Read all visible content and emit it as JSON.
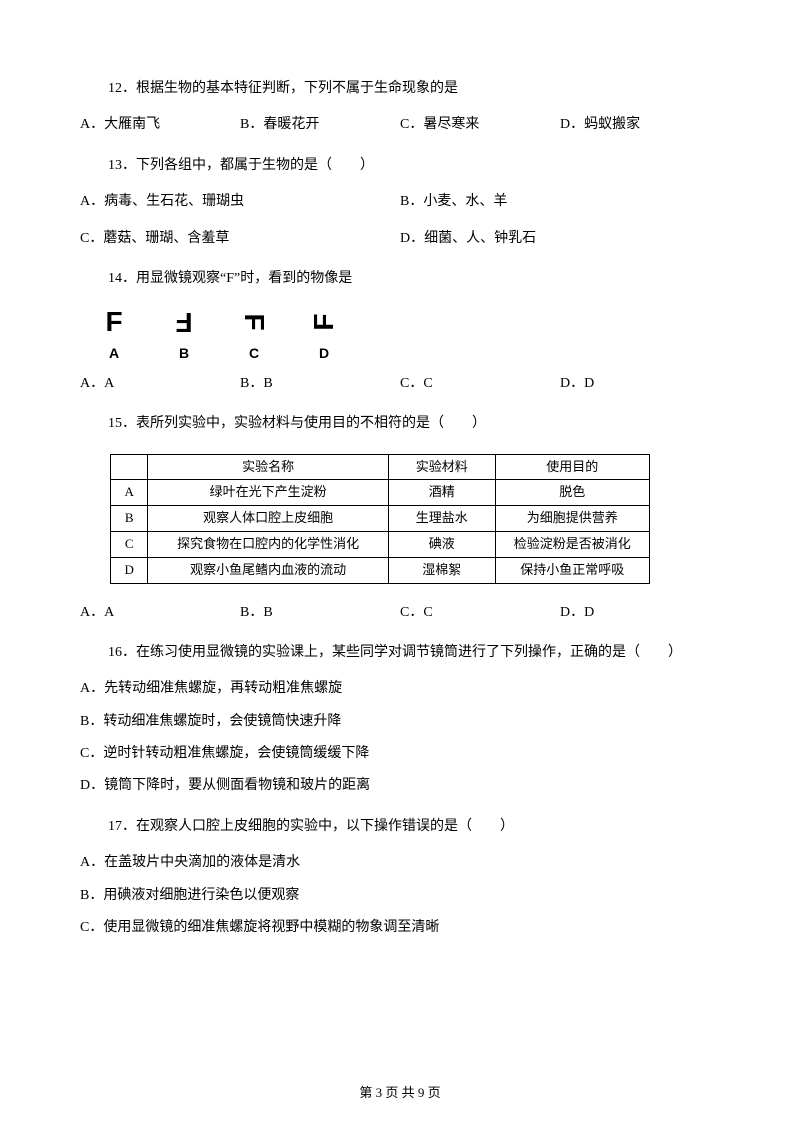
{
  "q12": {
    "stem": "12．根据生物的基本特征判断，下列不属于生命现象的是",
    "opts": {
      "a": "A．大雁南飞",
      "b": "B．春暖花开",
      "c": "C．暑尽寒来",
      "d": "D．蚂蚁搬家"
    }
  },
  "q13": {
    "stem": "13．下列各组中，都属于生物的是（　　）",
    "opts": {
      "a": "A．病毒、生石花、珊瑚虫",
      "b": "B．小麦、水、羊",
      "c": "C．蘑菇、珊瑚、含羞草",
      "d": "D．细菌、人、钟乳石"
    }
  },
  "q14": {
    "stem": "14．用显微镜观察“F”时，看到的物像是",
    "glyph": "F",
    "labels": {
      "a": "A",
      "b": "B",
      "c": "C",
      "d": "D"
    },
    "opts": {
      "a": "A．A",
      "b": "B．B",
      "c": "C．C",
      "d": "D．D"
    }
  },
  "q15": {
    "stem": "15．表所列实验中，实验材料与使用目的不相符的是（　　）",
    "table": {
      "headers": [
        "",
        "实验名称",
        "实验材料",
        "使用目的"
      ],
      "rows": [
        [
          "A",
          "绿叶在光下产生淀粉",
          "酒精",
          "脱色"
        ],
        [
          "B",
          "观察人体口腔上皮细胞",
          "生理盐水",
          "为细胞提供营养"
        ],
        [
          "C",
          "探究食物在口腔内的化学性消化",
          "碘液",
          "检验淀粉是否被消化"
        ],
        [
          "D",
          "观察小鱼尾鳍内血液的流动",
          "湿棉絮",
          "保持小鱼正常呼吸"
        ]
      ],
      "col_widths": [
        "38px",
        "250px",
        "110px",
        "160px"
      ]
    },
    "opts": {
      "a": "A．A",
      "b": "B．B",
      "c": "C．C",
      "d": "D．D"
    }
  },
  "q16": {
    "stem": "16．在练习使用显微镜的实验课上，某些同学对调节镜筒进行了下列操作，正确的是（　　）",
    "opts": {
      "a": "A．先转动细准焦螺旋，再转动粗准焦螺旋",
      "b": "B．转动细准焦螺旋时，会使镜筒快速升降",
      "c": "C．逆时针转动粗准焦螺旋，会使镜筒缓缓下降",
      "d": "D．镜筒下降时，要从侧面看物镜和玻片的距离"
    }
  },
  "q17": {
    "stem": "17．在观察人口腔上皮细胞的实验中，以下操作错误的是（　　）",
    "opts": {
      "a": "A．在盖玻片中央滴加的液体是清水",
      "b": "B．用碘液对细胞进行染色以便观察",
      "c": "C．使用显微镜的细准焦螺旋将视野中模糊的物象调至清晰"
    }
  },
  "footer": "第 3 页 共 9 页"
}
